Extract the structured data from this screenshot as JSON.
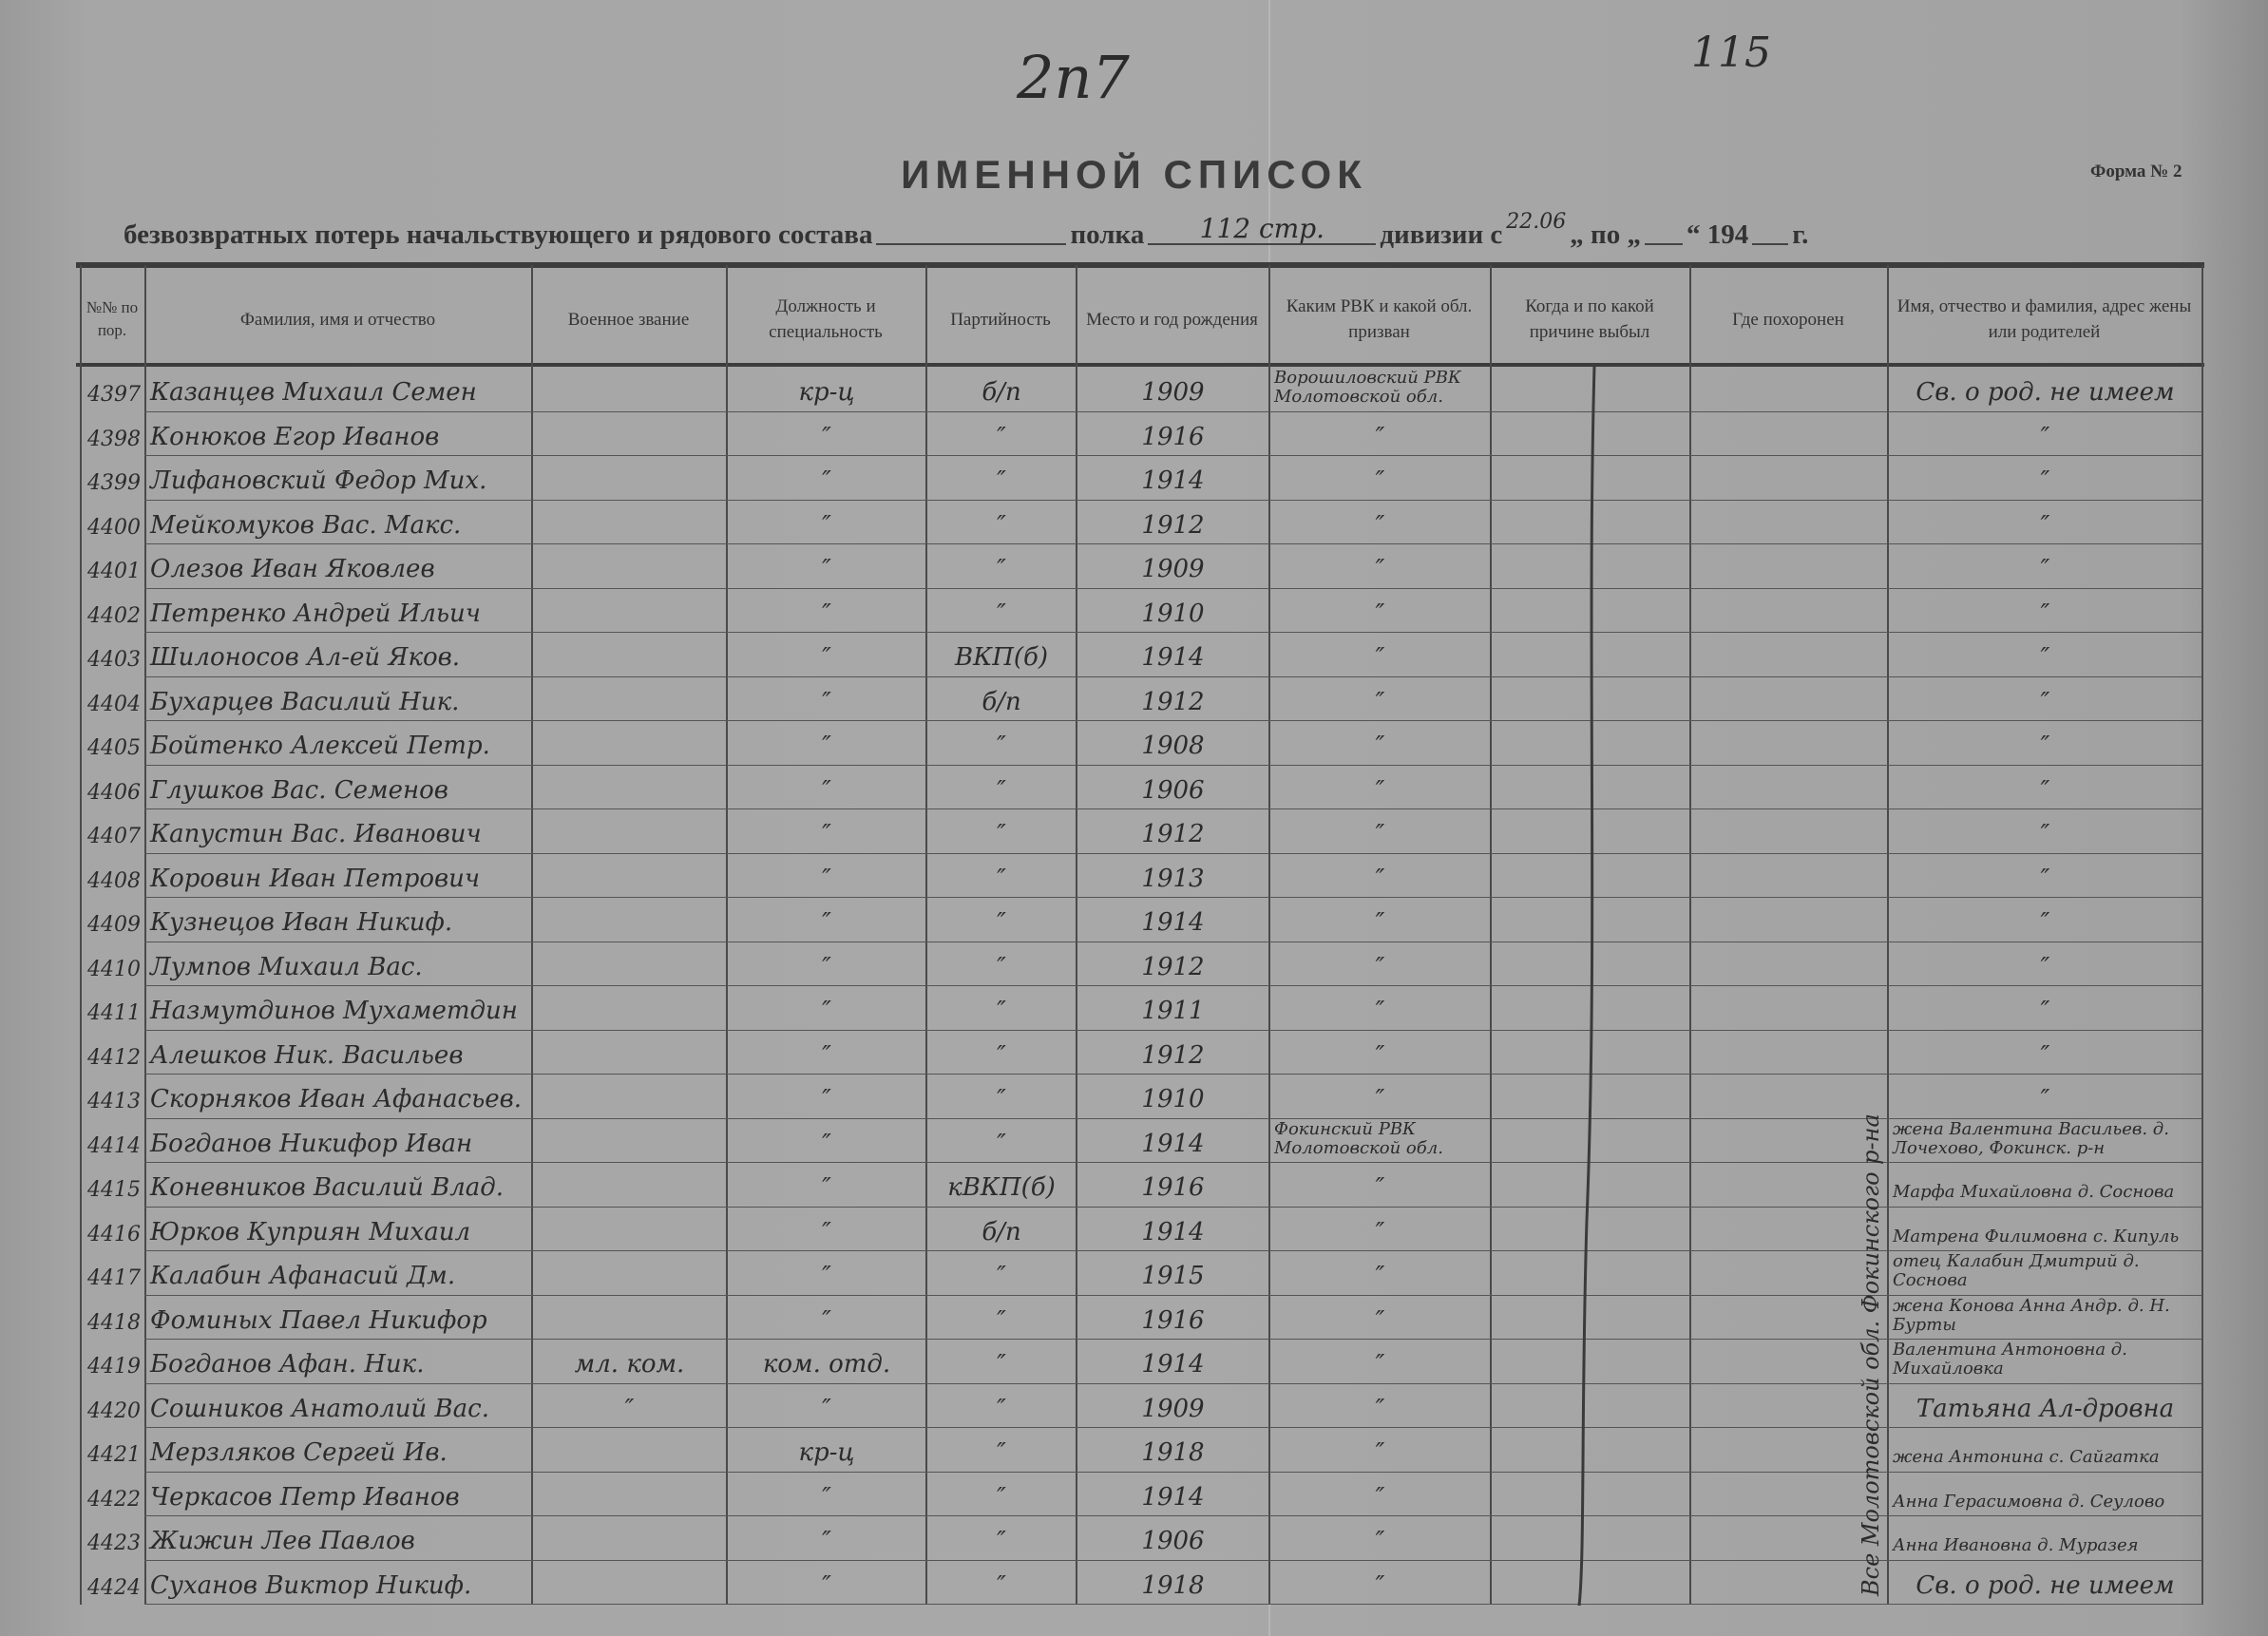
{
  "archive_marks": {
    "sheet_number": "2п7",
    "page_number": "115"
  },
  "form": {
    "title": "ИМЕННОЙ СПИСОК",
    "form_label": "Форма № 2",
    "subtitle_part1": "безвозвратных потерь начальствующего и рядового состава",
    "subtitle_part2": "полка",
    "division_value": "112 стр.",
    "subtitle_part3": "дивизии с",
    "date_from_value": "22.06",
    "subtitle_part4": "„ по „",
    "subtitle_part5": "“ 194",
    "subtitle_part6": "г."
  },
  "columns": [
    "№№ по пор.",
    "Фамилия, имя и отчество",
    "Военное звание",
    "Должность и специальность",
    "Партийность",
    "Место и год рождения",
    "Каким РВК и какой обл. призван",
    "Когда и по какой причине выбыл",
    "Где похоронен",
    "Имя, отчество и фамилия, адрес жены или родителей"
  ],
  "burial_note": "Все Молотовской обл. Фокинского р-на",
  "rows": [
    {
      "num": "4397",
      "name": "Казанцев Михаил Семен",
      "rank": "",
      "position": "кр-ц",
      "party": "б/п",
      "birth": "1909",
      "rvk": "Ворошиловский РВК Молотовской обл.",
      "relatives": "Св. о род. не имеем"
    },
    {
      "num": "4398",
      "name": "Конюков Егор Иванов",
      "rank": "",
      "position": "″",
      "party": "″",
      "birth": "1916",
      "rvk": "″",
      "relatives": "″"
    },
    {
      "num": "4399",
      "name": "Лифановский Федор Мих.",
      "rank": "",
      "position": "″",
      "party": "″",
      "birth": "1914",
      "rvk": "″",
      "relatives": "″"
    },
    {
      "num": "4400",
      "name": "Мейкомуков Вас. Макс.",
      "rank": "",
      "position": "″",
      "party": "″",
      "birth": "1912",
      "rvk": "″",
      "relatives": "″"
    },
    {
      "num": "4401",
      "name": "Олезов Иван Яковлев",
      "rank": "",
      "position": "″",
      "party": "″",
      "birth": "1909",
      "rvk": "″",
      "relatives": "″"
    },
    {
      "num": "4402",
      "name": "Петренко Андрей Ильич",
      "rank": "",
      "position": "″",
      "party": "″",
      "birth": "1910",
      "rvk": "″",
      "relatives": "″"
    },
    {
      "num": "4403",
      "name": "Шилоносов Ал-ей Яков.",
      "rank": "",
      "position": "″",
      "party": "ВКП(б)",
      "birth": "1914",
      "rvk": "″",
      "relatives": "″"
    },
    {
      "num": "4404",
      "name": "Бухарцев Василий Ник.",
      "rank": "",
      "position": "″",
      "party": "б/п",
      "birth": "1912",
      "rvk": "″",
      "relatives": "″"
    },
    {
      "num": "4405",
      "name": "Бойтенко Алексей Петр.",
      "rank": "",
      "position": "″",
      "party": "″",
      "birth": "1908",
      "rvk": "″",
      "relatives": "″"
    },
    {
      "num": "4406",
      "name": "Глушков Вас. Семенов",
      "rank": "",
      "position": "″",
      "party": "″",
      "birth": "1906",
      "rvk": "″",
      "relatives": "″"
    },
    {
      "num": "4407",
      "name": "Капустин Вас. Иванович",
      "rank": "",
      "position": "″",
      "party": "″",
      "birth": "1912",
      "rvk": "″",
      "relatives": "″"
    },
    {
      "num": "4408",
      "name": "Коровин Иван Петрович",
      "rank": "",
      "position": "″",
      "party": "″",
      "birth": "1913",
      "rvk": "″",
      "relatives": "″"
    },
    {
      "num": "4409",
      "name": "Кузнецов Иван Никиф.",
      "rank": "",
      "position": "″",
      "party": "″",
      "birth": "1914",
      "rvk": "″",
      "relatives": "″"
    },
    {
      "num": "4410",
      "name": "Лумпов Михаил Вас.",
      "rank": "",
      "position": "″",
      "party": "″",
      "birth": "1912",
      "rvk": "″",
      "relatives": "″"
    },
    {
      "num": "4411",
      "name": "Назмутдинов Мухаметдин",
      "rank": "",
      "position": "″",
      "party": "″",
      "birth": "1911",
      "rvk": "″",
      "relatives": "″"
    },
    {
      "num": "4412",
      "name": "Алешков Ник. Васильев",
      "rank": "",
      "position": "″",
      "party": "″",
      "birth": "1912",
      "rvk": "″",
      "relatives": "″"
    },
    {
      "num": "4413",
      "name": "Скорняков Иван Афанасьев.",
      "rank": "",
      "position": "″",
      "party": "″",
      "birth": "1910",
      "rvk": "″",
      "relatives": "″"
    },
    {
      "num": "4414",
      "name": "Богданов Никифор Иван",
      "rank": "",
      "position": "″",
      "party": "″",
      "birth": "1914",
      "rvk": "Фокинский РВК Молотовской обл.",
      "relatives": "жена Валентина Васильев. д. Лочехово, Фокинск. р-н"
    },
    {
      "num": "4415",
      "name": "Коневников Василий Влад.",
      "rank": "",
      "position": "″",
      "party": "кВКП(б)",
      "birth": "1916",
      "rvk": "″",
      "relatives": "Марфа Михайловна д. Соснова"
    },
    {
      "num": "4416",
      "name": "Юрков Куприян Михаил",
      "rank": "",
      "position": "″",
      "party": "б/п",
      "birth": "1914",
      "rvk": "″",
      "relatives": "Матрена Филимовна с. Кипуль"
    },
    {
      "num": "4417",
      "name": "Калабин Афанасий Дм.",
      "rank": "",
      "position": "″",
      "party": "″",
      "birth": "1915",
      "rvk": "″",
      "relatives": "отец Калабин Дмитрий д. Соснова"
    },
    {
      "num": "4418",
      "name": "Фоминых Павел Никифор",
      "rank": "",
      "position": "″",
      "party": "″",
      "birth": "1916",
      "rvk": "″",
      "relatives": "жена Конова Анна Андр. д. Н. Бурты"
    },
    {
      "num": "4419",
      "name": "Богданов Афан. Ник.",
      "rank": "мл. ком.",
      "position": "ком. отд.",
      "party": "″",
      "birth": "1914",
      "rvk": "″",
      "relatives": "Валентина Антоновна д. Михайловка"
    },
    {
      "num": "4420",
      "name": "Сошников Анатолий Вас.",
      "rank": "″",
      "position": "″",
      "party": "″",
      "birth": "1909",
      "rvk": "″",
      "relatives": "Татьяна Ал-дровна"
    },
    {
      "num": "4421",
      "name": "Мерзляков Сергей Ив.",
      "rank": "",
      "position": "кр-ц",
      "party": "″",
      "birth": "1918",
      "rvk": "″",
      "relatives": "жена Антонина с. Сайгатка"
    },
    {
      "num": "4422",
      "name": "Черкасов Петр Иванов",
      "rank": "",
      "position": "″",
      "party": "″",
      "birth": "1914",
      "rvk": "″",
      "relatives": "Анна Герасимовна д. Сеулово"
    },
    {
      "num": "4423",
      "name": "Жижин Лев Павлов",
      "rank": "",
      "position": "″",
      "party": "″",
      "birth": "1906",
      "rvk": "″",
      "relatives": "Анна Ивановна д. Муразея"
    },
    {
      "num": "4424",
      "name": "Суханов Виктор Никиф.",
      "rank": "",
      "position": "″",
      "party": "″",
      "birth": "1918",
      "rvk": "″",
      "relatives": "Св. о род. не имеем"
    }
  ]
}
